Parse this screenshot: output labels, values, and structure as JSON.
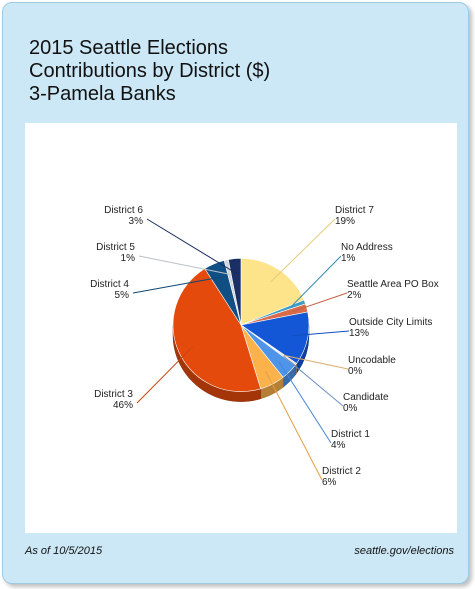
{
  "title_lines": [
    "2015 Seattle Elections",
    "Contributions by District ($)",
    "3-Pamela Banks"
  ],
  "footer": {
    "as_of": "As of 10/5/2015",
    "source": "seattle.gov/elections"
  },
  "chart_data": {
    "type": "pie",
    "title": "2015 Seattle Elections Contributions by District ($) 3-Pamela Banks",
    "start_angle_deg": 0,
    "direction": "clockwise-from-top",
    "slices": [
      {
        "name": "District 7",
        "percent_label": "19%",
        "value": 19,
        "color": "#fde38a"
      },
      {
        "name": "No Address",
        "percent_label": "1%",
        "value": 1,
        "color": "#3c9ec7"
      },
      {
        "name": "Seattle Area PO Box",
        "percent_label": "2%",
        "value": 2,
        "color": "#d96b4a"
      },
      {
        "name": "Outside City Limits",
        "percent_label": "13%",
        "value": 13,
        "color": "#1357d6"
      },
      {
        "name": "Uncodable",
        "percent_label": "0%",
        "value": 0.3,
        "color": "#f4c17a"
      },
      {
        "name": "Candidate",
        "percent_label": "0%",
        "value": 0.3,
        "color": "#7b9fd4"
      },
      {
        "name": "District 1",
        "percent_label": "4%",
        "value": 4,
        "color": "#4e95ea"
      },
      {
        "name": "District 2",
        "percent_label": "6%",
        "value": 6,
        "color": "#fbb24a"
      },
      {
        "name": "District 3",
        "percent_label": "46%",
        "value": 46,
        "color": "#e34a0c"
      },
      {
        "name": "District 4",
        "percent_label": "5%",
        "value": 5,
        "color": "#0f4f83"
      },
      {
        "name": "District 5",
        "percent_label": "1%",
        "value": 1,
        "color": "#d0d6dc"
      },
      {
        "name": "District 6",
        "percent_label": "3%",
        "value": 3,
        "color": "#1a2f66"
      }
    ]
  }
}
